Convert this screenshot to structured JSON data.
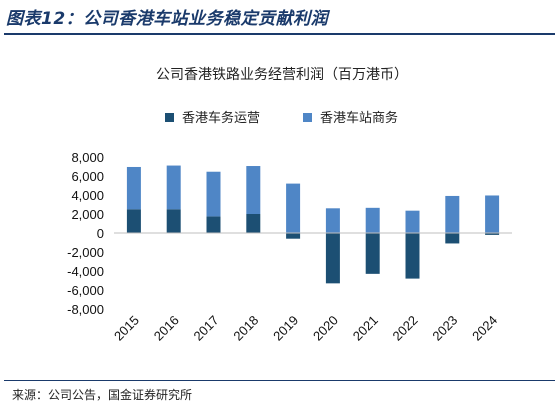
{
  "figure": {
    "title": "图表12：公司香港车站业务稳定贡献利润",
    "source": "来源：公司公告，国金证券研究所"
  },
  "chart_data": {
    "type": "bar",
    "stacked": true,
    "title": "公司香港铁路业务经营利润（百万港币）",
    "categories": [
      "2015",
      "2016",
      "2017",
      "2018",
      "2019",
      "2020",
      "2021",
      "2022",
      "2023",
      "2024"
    ],
    "series": [
      {
        "name": "香港车务运营",
        "color": "#1c4f73",
        "values": [
          2500,
          2500,
          1750,
          2000,
          -600,
          -5300,
          -4300,
          -4800,
          -1100,
          -200
        ]
      },
      {
        "name": "香港车站商务",
        "color": "#4f86c6",
        "values": [
          4450,
          4600,
          4700,
          5050,
          5200,
          2600,
          2650,
          2350,
          3900,
          3950
        ]
      }
    ],
    "ylim": [
      -8000,
      8000
    ],
    "yticks": [
      "-8,000",
      "-6,000",
      "-4,000",
      "-2,000",
      "0",
      "2,000",
      "4,000",
      "6,000",
      "8,000"
    ],
    "legend_position": "top",
    "grid": false
  }
}
